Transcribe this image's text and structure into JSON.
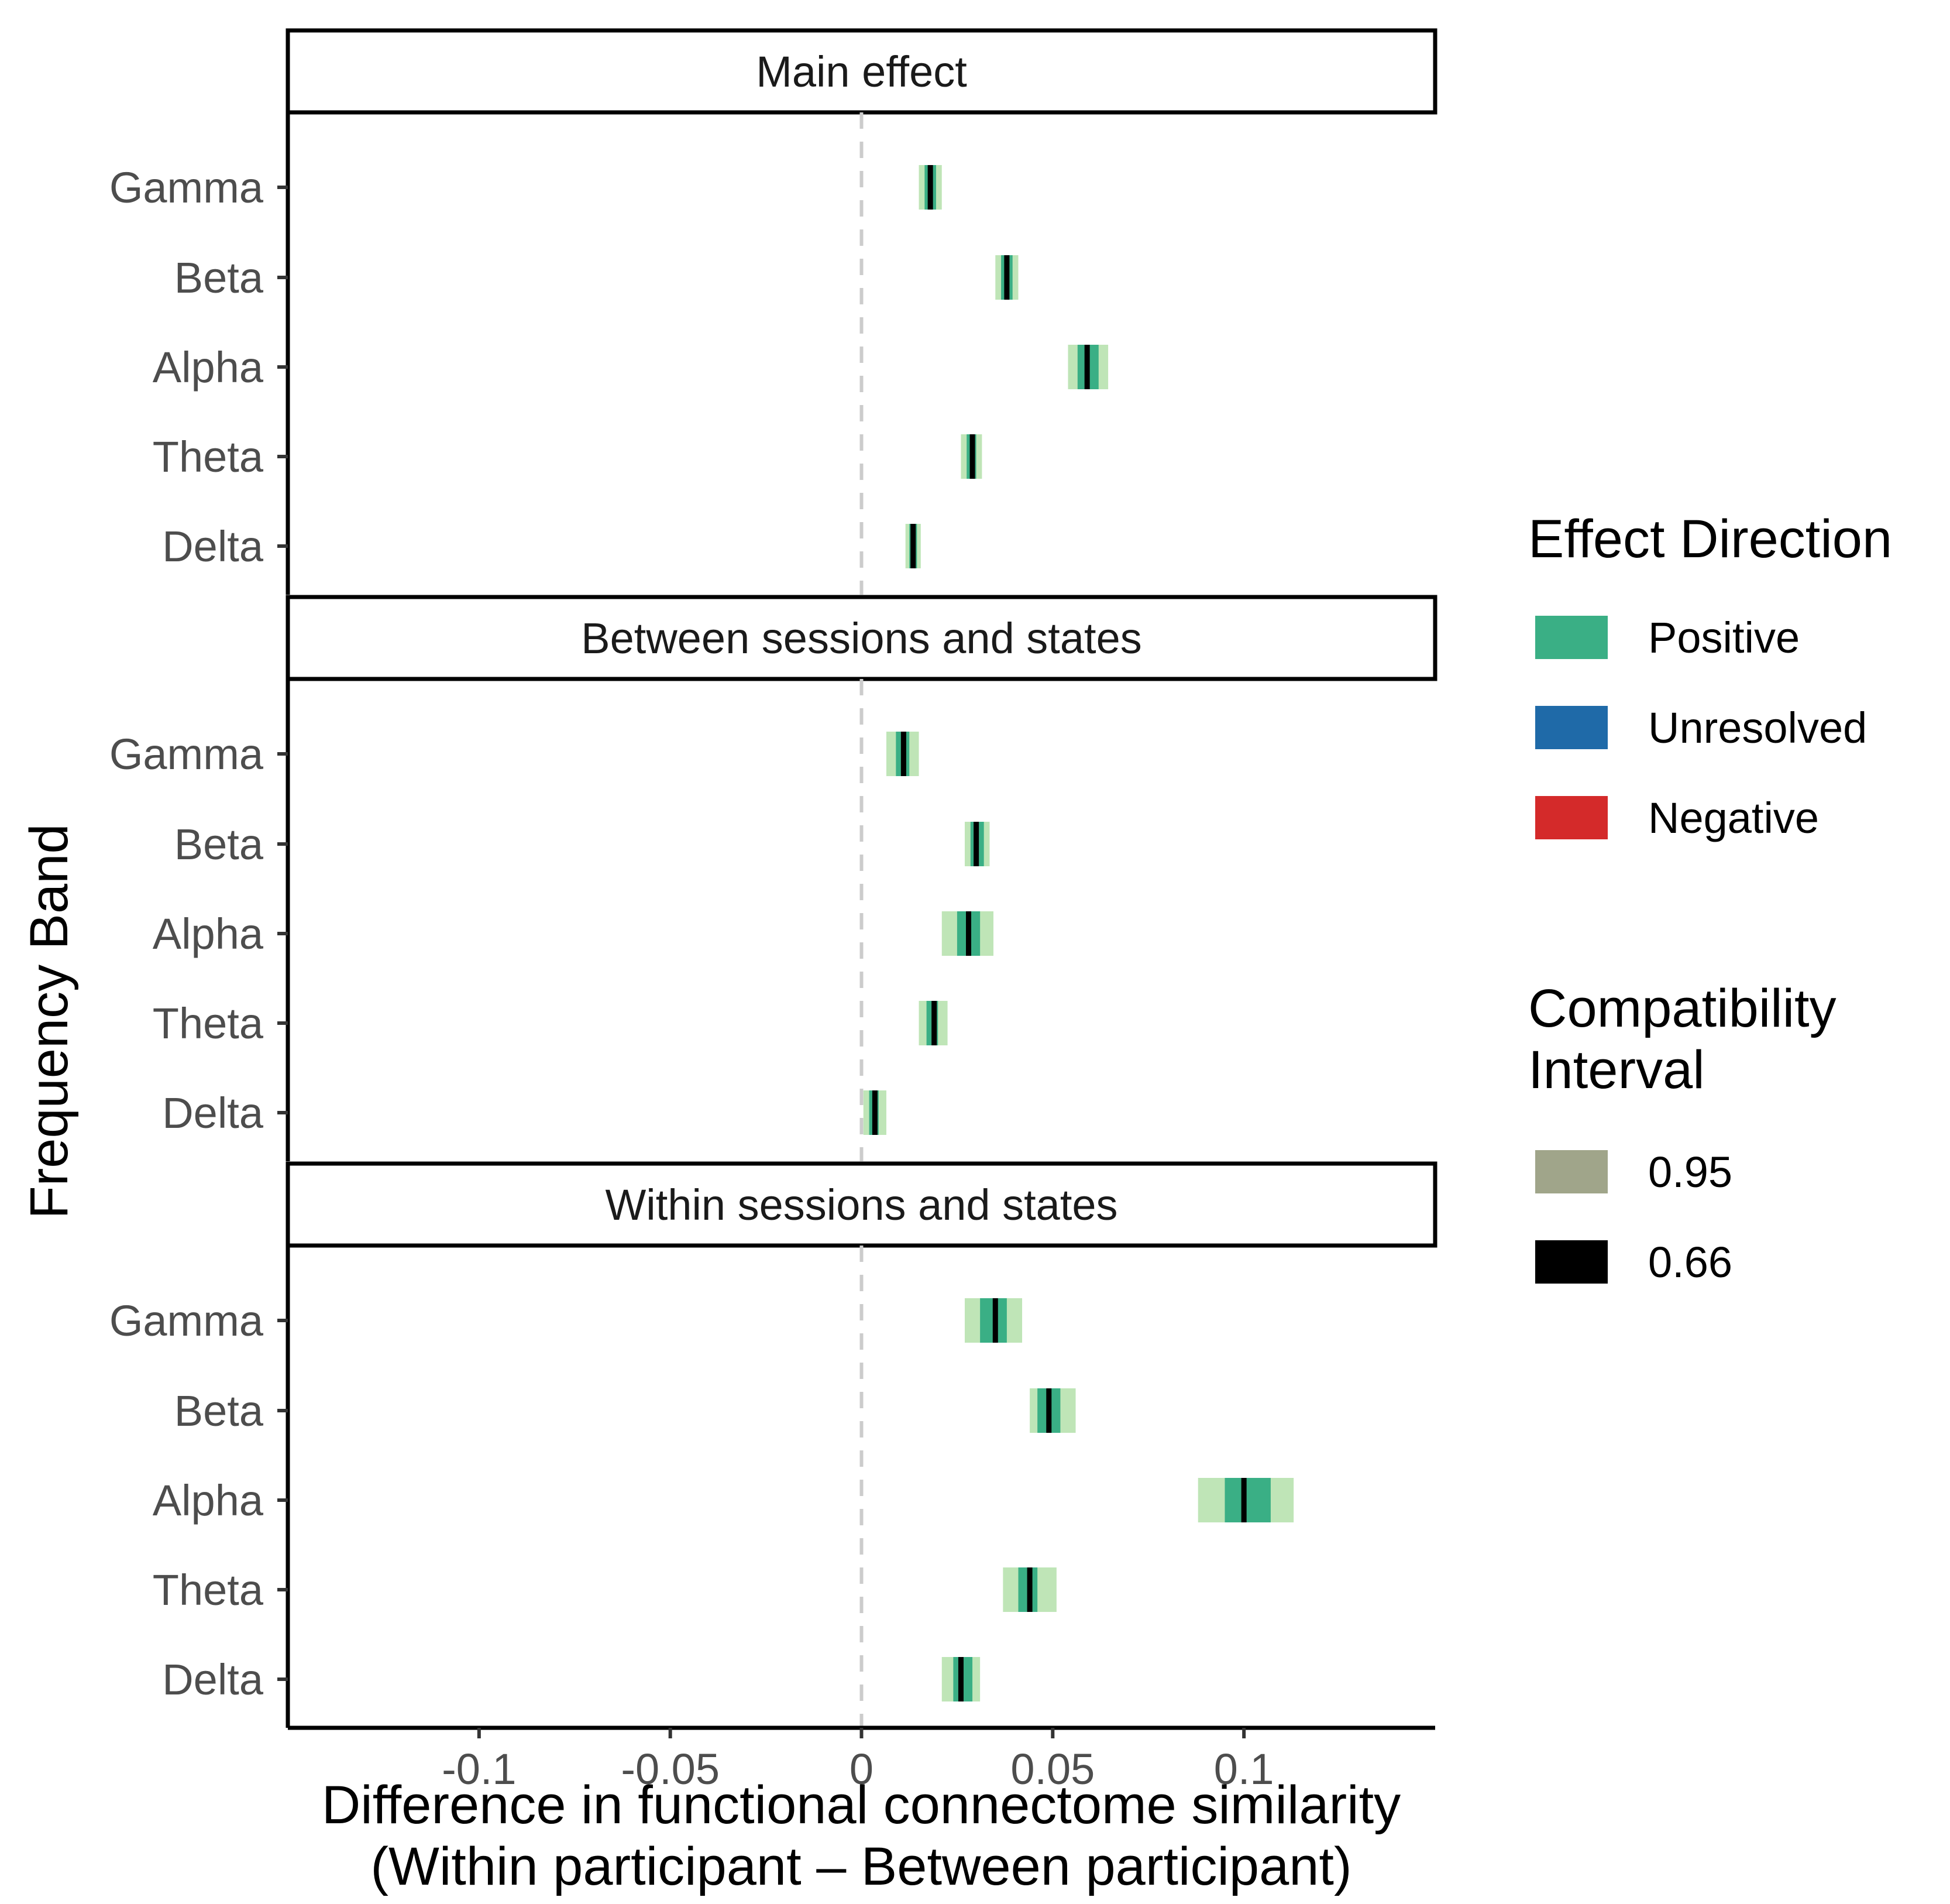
{
  "chart_data": {
    "type": "interval",
    "xlabel": [
      "Difference in functional connectome similarity",
      "(Within participant – Between participant)"
    ],
    "ylabel": "Frequency Band",
    "xlim": [
      -0.15,
      0.15
    ],
    "x_ticks": [
      -0.1,
      -0.05,
      0,
      0.05,
      0.1
    ],
    "x_tick_labels": [
      "-0.1",
      "-0.05",
      "0",
      "0.05",
      "0.1"
    ],
    "reference_line": 0,
    "categories": [
      "Gamma",
      "Beta",
      "Alpha",
      "Theta",
      "Delta"
    ],
    "panels": [
      {
        "title": "Main effect",
        "rows": [
          {
            "band": "Gamma",
            "estimate": 0.018,
            "ci66": [
              0.0165,
              0.0195
            ],
            "ci95": [
              0.015,
              0.021
            ],
            "direction": "Positive"
          },
          {
            "band": "Beta",
            "estimate": 0.038,
            "ci66": [
              0.0365,
              0.0395
            ],
            "ci95": [
              0.035,
              0.041
            ],
            "direction": "Positive"
          },
          {
            "band": "Alpha",
            "estimate": 0.059,
            "ci66": [
              0.0565,
              0.062
            ],
            "ci95": [
              0.054,
              0.0645
            ],
            "direction": "Positive"
          },
          {
            "band": "Theta",
            "estimate": 0.029,
            "ci66": [
              0.0275,
              0.03
            ],
            "ci95": [
              0.026,
              0.0315
            ],
            "direction": "Positive"
          },
          {
            "band": "Delta",
            "estimate": 0.0135,
            "ci66": [
              0.0125,
              0.0145
            ],
            "ci95": [
              0.0115,
              0.0155
            ],
            "direction": "Positive"
          }
        ]
      },
      {
        "title": "Between sessions and states",
        "rows": [
          {
            "band": "Gamma",
            "estimate": 0.011,
            "ci66": [
              0.009,
              0.0125
            ],
            "ci95": [
              0.0065,
              0.015
            ],
            "direction": "Positive"
          },
          {
            "band": "Beta",
            "estimate": 0.03,
            "ci66": [
              0.0285,
              0.032
            ],
            "ci95": [
              0.027,
              0.0335
            ],
            "direction": "Positive"
          },
          {
            "band": "Alpha",
            "estimate": 0.028,
            "ci66": [
              0.025,
              0.031
            ],
            "ci95": [
              0.021,
              0.0345
            ],
            "direction": "Positive"
          },
          {
            "band": "Theta",
            "estimate": 0.019,
            "ci66": [
              0.017,
              0.02
            ],
            "ci95": [
              0.015,
              0.0225
            ],
            "direction": "Positive"
          },
          {
            "band": "Delta",
            "estimate": 0.0035,
            "ci66": [
              0.002,
              0.0045
            ],
            "ci95": [
              0.0005,
              0.0065
            ],
            "direction": "Positive"
          }
        ]
      },
      {
        "title": "Within sessions and states",
        "rows": [
          {
            "band": "Gamma",
            "estimate": 0.035,
            "ci66": [
              0.031,
              0.038
            ],
            "ci95": [
              0.027,
              0.042
            ],
            "direction": "Positive"
          },
          {
            "band": "Beta",
            "estimate": 0.049,
            "ci66": [
              0.046,
              0.052
            ],
            "ci95": [
              0.044,
              0.056
            ],
            "direction": "Positive"
          },
          {
            "band": "Alpha",
            "estimate": 0.1,
            "ci66": [
              0.095,
              0.107
            ],
            "ci95": [
              0.088,
              0.113
            ],
            "direction": "Positive"
          },
          {
            "band": "Theta",
            "estimate": 0.044,
            "ci66": [
              0.041,
              0.046
            ],
            "ci95": [
              0.037,
              0.051
            ],
            "direction": "Positive"
          },
          {
            "band": "Delta",
            "estimate": 0.026,
            "ci66": [
              0.024,
              0.029
            ],
            "ci95": [
              0.021,
              0.031
            ],
            "direction": "Positive"
          }
        ]
      }
    ],
    "legend": {
      "placement": "right",
      "effect_direction": {
        "title": "Effect Direction",
        "items": [
          {
            "label": "Positive",
            "color": "#3aaf85"
          },
          {
            "label": "Unresolved",
            "color": "#1f6aa8"
          },
          {
            "label": "Negative",
            "color": "#d42a2a"
          }
        ]
      },
      "compatibility_interval": {
        "title": [
          "Compatibility",
          "Interval"
        ],
        "items": [
          {
            "label": "0.95",
            "color": "#a0a58a"
          },
          {
            "label": "0.66",
            "color": "#000000"
          }
        ]
      }
    },
    "colors": {
      "ci95_positive": "#bfe5b7",
      "ci66_positive": "#3aaf85",
      "estimate": "#000000",
      "reference_line": "#cccccc"
    }
  }
}
